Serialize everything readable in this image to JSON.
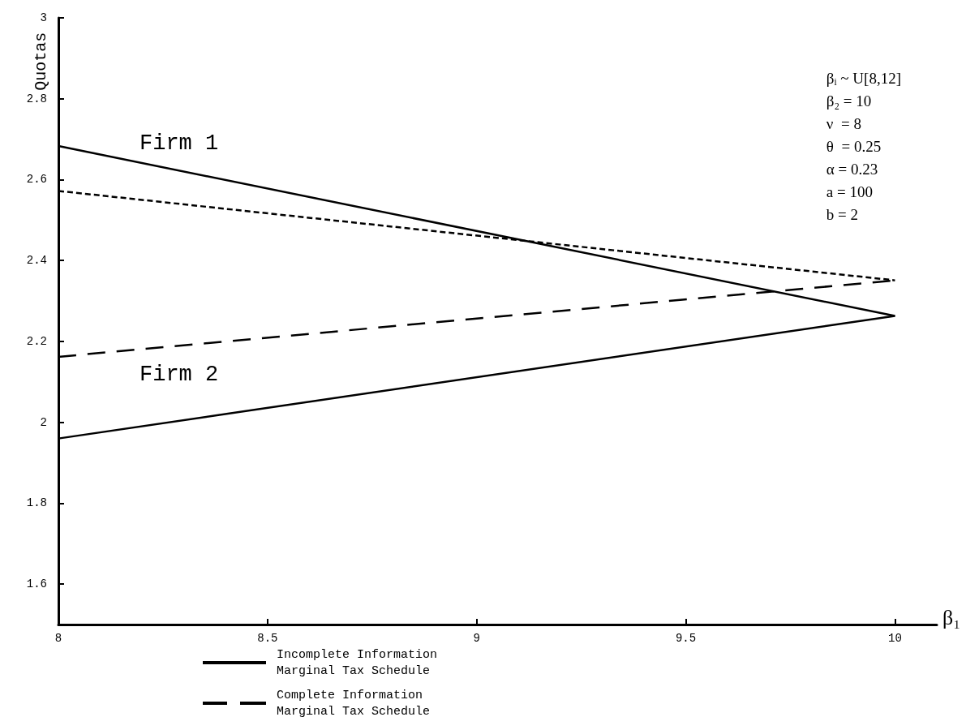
{
  "chart_data": {
    "type": "line",
    "xlabel": "β₁",
    "ylabel": "Quotas",
    "x": [
      8,
      10
    ],
    "xlim": [
      8,
      10.1
    ],
    "xticks": [
      8,
      8.5,
      9,
      9.5,
      10
    ],
    "ylim": [
      1.5,
      3
    ],
    "yticks": [
      1.6,
      1.8,
      2,
      2.2,
      2.4,
      2.6,
      2.8,
      3
    ],
    "series": [
      {
        "name": "Incomplete Information\nMarginal Tax Schedule",
        "color": "#000000",
        "line_style": "solid",
        "values": [
          2.683,
          2.263
        ]
      },
      {
        "color": "#000000",
        "line_style": "solid",
        "values": [
          1.96,
          2.263
        ]
      },
      {
        "color": "#000000",
        "line_style": "dotted",
        "values": [
          2.572,
          2.351
        ]
      },
      {
        "name": "Complete Information\nMarginal Tax Schedule",
        "color": "#000000",
        "line_style": "dashed",
        "values": [
          2.162,
          2.351
        ]
      }
    ],
    "annotations": [
      "Firm 1",
      "Firm 2",
      "βᵢ ~ U[8,12]\nβ₂ = 10\nν  = 8\nθ  = 0.25\nα = 0.23\na = 100\nb = 2"
    ],
    "legend": "bottom",
    "grid": false,
    "marker": "none"
  }
}
